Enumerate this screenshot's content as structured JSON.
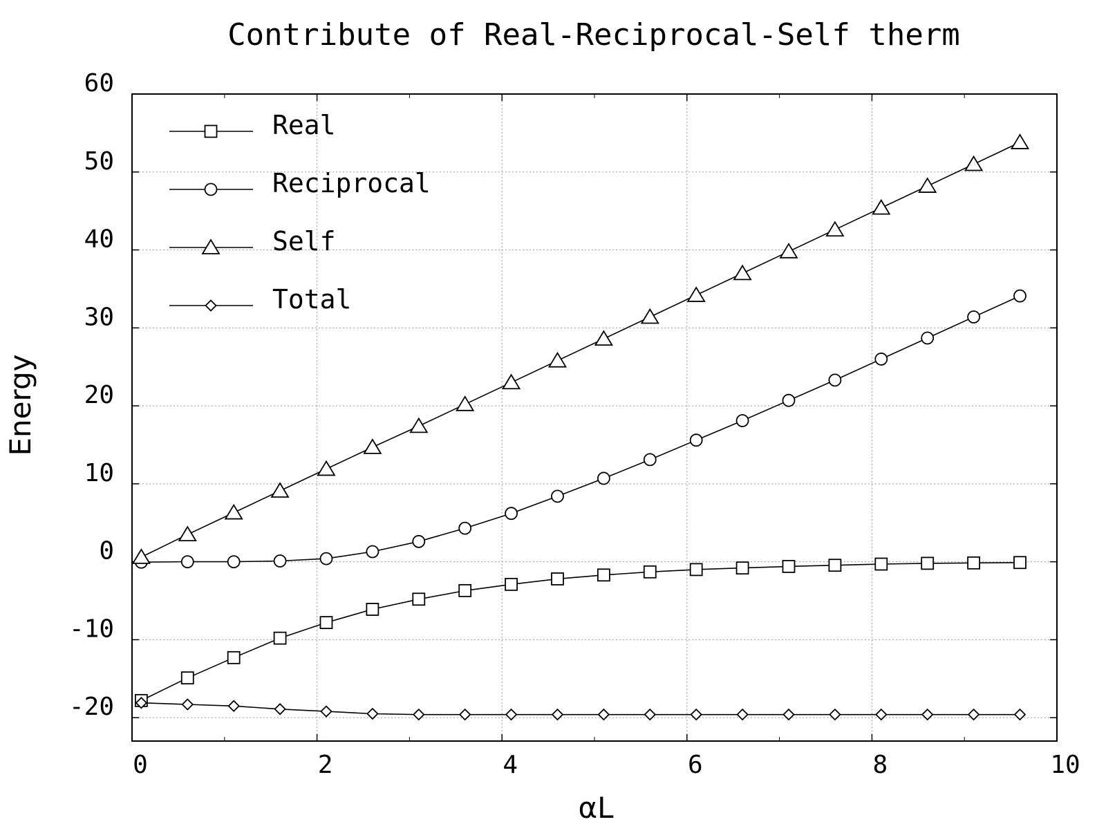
{
  "chart_data": {
    "type": "line",
    "title": "Contribute of Real-Reciprocal-Self therm",
    "xlabel": "αL",
    "ylabel": "Energy",
    "xlim": [
      0,
      10
    ],
    "ylim": [
      -23,
      60
    ],
    "xticks": [
      "0",
      "2",
      "4",
      "6",
      "8",
      "10"
    ],
    "xtick_values": [
      0,
      2,
      4,
      6,
      8,
      10
    ],
    "yticks": [
      "60",
      "50",
      "40",
      "30",
      "20",
      "10",
      "0",
      "-10",
      "-20"
    ],
    "ytick_values": [
      60,
      50,
      40,
      30,
      20,
      10,
      0,
      -10,
      -20
    ],
    "grid": true,
    "legend_position": "top-left",
    "x": [
      0.1,
      0.6,
      1.1,
      1.6,
      2.1,
      2.6,
      3.1,
      3.6,
      4.1,
      4.6,
      5.1,
      5.6,
      6.1,
      6.6,
      7.1,
      7.6,
      8.1,
      8.6,
      9.1,
      9.6
    ],
    "series": [
      {
        "name": "Real",
        "marker": "square",
        "values": [
          -17.8,
          -14.9,
          -12.3,
          -9.8,
          -7.8,
          -6.1,
          -4.8,
          -3.7,
          -2.9,
          -2.2,
          -1.7,
          -1.3,
          -1.0,
          -0.8,
          -0.6,
          -0.45,
          -0.3,
          -0.2,
          -0.15,
          -0.1
        ]
      },
      {
        "name": "Reciprocal",
        "marker": "circle",
        "values": [
          -0.05,
          0.0,
          0.0,
          0.1,
          0.4,
          1.3,
          2.6,
          4.3,
          6.2,
          8.4,
          10.7,
          13.1,
          15.6,
          18.1,
          20.7,
          23.3,
          26.0,
          28.7,
          31.4,
          34.1
        ]
      },
      {
        "name": "Self",
        "marker": "triangle",
        "values": [
          0.6,
          3.5,
          6.3,
          9.1,
          11.9,
          14.7,
          17.4,
          20.2,
          23.0,
          25.8,
          28.6,
          31.4,
          34.2,
          37.0,
          39.8,
          42.6,
          45.4,
          48.2,
          51.0,
          53.8
        ]
      },
      {
        "name": "Total",
        "marker": "diamond",
        "values": [
          -18.1,
          -18.3,
          -18.5,
          -18.9,
          -19.2,
          -19.5,
          -19.6,
          -19.6,
          -19.6,
          -19.6,
          -19.6,
          -19.6,
          -19.6,
          -19.6,
          -19.6,
          -19.6,
          -19.6,
          -19.6,
          -19.6,
          -19.6
        ]
      }
    ]
  }
}
